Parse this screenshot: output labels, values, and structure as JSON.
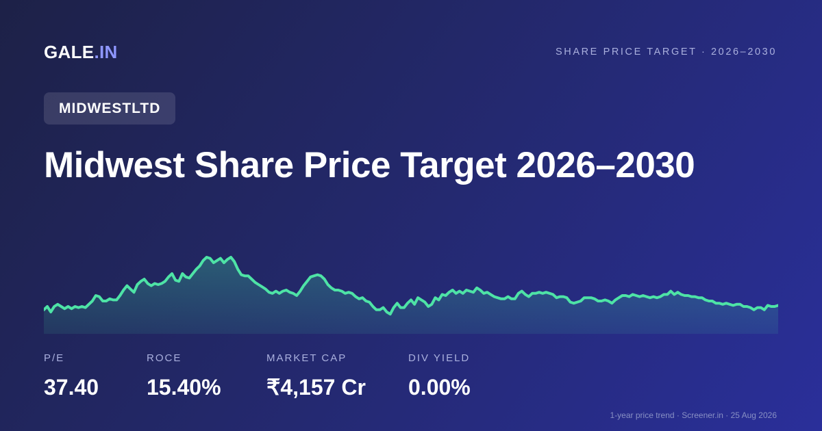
{
  "brand": {
    "name": "GALE",
    "separator": ".",
    "suffix": "IN"
  },
  "header": {
    "subtitle": "SHARE PRICE TARGET · 2026–2030"
  },
  "ticker": "MIDWESTLTD",
  "headline": {
    "title": "Midwest Share Price Target 2026–2030"
  },
  "chart_data": {
    "type": "area",
    "title": "",
    "xlabel": "",
    "ylabel": "",
    "x_description": "1-year daily trend (index)",
    "values": [
      22,
      25,
      20,
      25,
      27,
      25,
      23,
      25,
      23,
      25,
      24,
      25,
      24,
      27,
      30,
      35,
      34,
      30,
      30,
      32,
      31,
      31,
      35,
      40,
      44,
      41,
      38,
      45,
      48,
      50,
      46,
      44,
      46,
      45,
      46,
      48,
      52,
      55,
      49,
      48,
      55,
      52,
      51,
      55,
      59,
      62,
      67,
      70,
      69,
      65,
      67,
      69,
      65,
      68,
      70,
      66,
      59,
      54,
      53,
      53,
      50,
      47,
      45,
      43,
      41,
      38,
      37,
      39,
      37,
      39,
      40,
      38,
      37,
      35,
      39,
      44,
      48,
      52,
      53,
      54,
      53,
      50,
      45,
      42,
      40,
      40,
      39,
      37,
      38,
      37,
      34,
      32,
      33,
      30,
      29,
      25,
      22,
      22,
      24,
      20,
      18,
      24,
      28,
      24,
      24,
      28,
      31,
      27,
      33,
      31,
      29,
      25,
      27,
      33,
      31,
      36,
      35,
      38,
      40,
      37,
      39,
      37,
      40,
      39,
      38,
      42,
      40,
      37,
      38,
      36,
      34,
      33,
      32,
      32,
      34,
      32,
      32,
      37,
      39,
      36,
      34,
      37,
      37,
      38,
      37,
      38,
      37,
      36,
      33,
      34,
      34,
      33,
      29,
      28,
      29,
      30,
      33,
      33,
      33,
      32,
      30,
      30,
      31,
      30,
      28,
      31,
      33,
      35,
      35,
      34,
      36,
      35,
      34,
      35,
      34,
      33,
      34,
      33,
      34,
      36,
      36,
      39,
      36,
      38,
      36,
      35,
      35,
      34,
      34,
      33,
      33,
      31,
      30,
      30,
      28,
      28,
      27,
      28,
      27,
      26,
      27,
      27,
      25,
      25,
      24,
      22,
      24,
      24,
      22,
      26,
      25,
      25,
      26
    ],
    "fill_color": "#3fd9a0",
    "line_color": "#4ee3a6",
    "grid": false
  },
  "metrics": [
    {
      "label": "P/E",
      "value": "37.40"
    },
    {
      "label": "ROCE",
      "value": "15.40%"
    },
    {
      "label": "MARKET CAP",
      "value": "₹4,157 Cr"
    },
    {
      "label": "DIV YIELD",
      "value": "0.00%"
    }
  ],
  "footer": "1-year price trend · Screener.in · 25 Aug 2026"
}
